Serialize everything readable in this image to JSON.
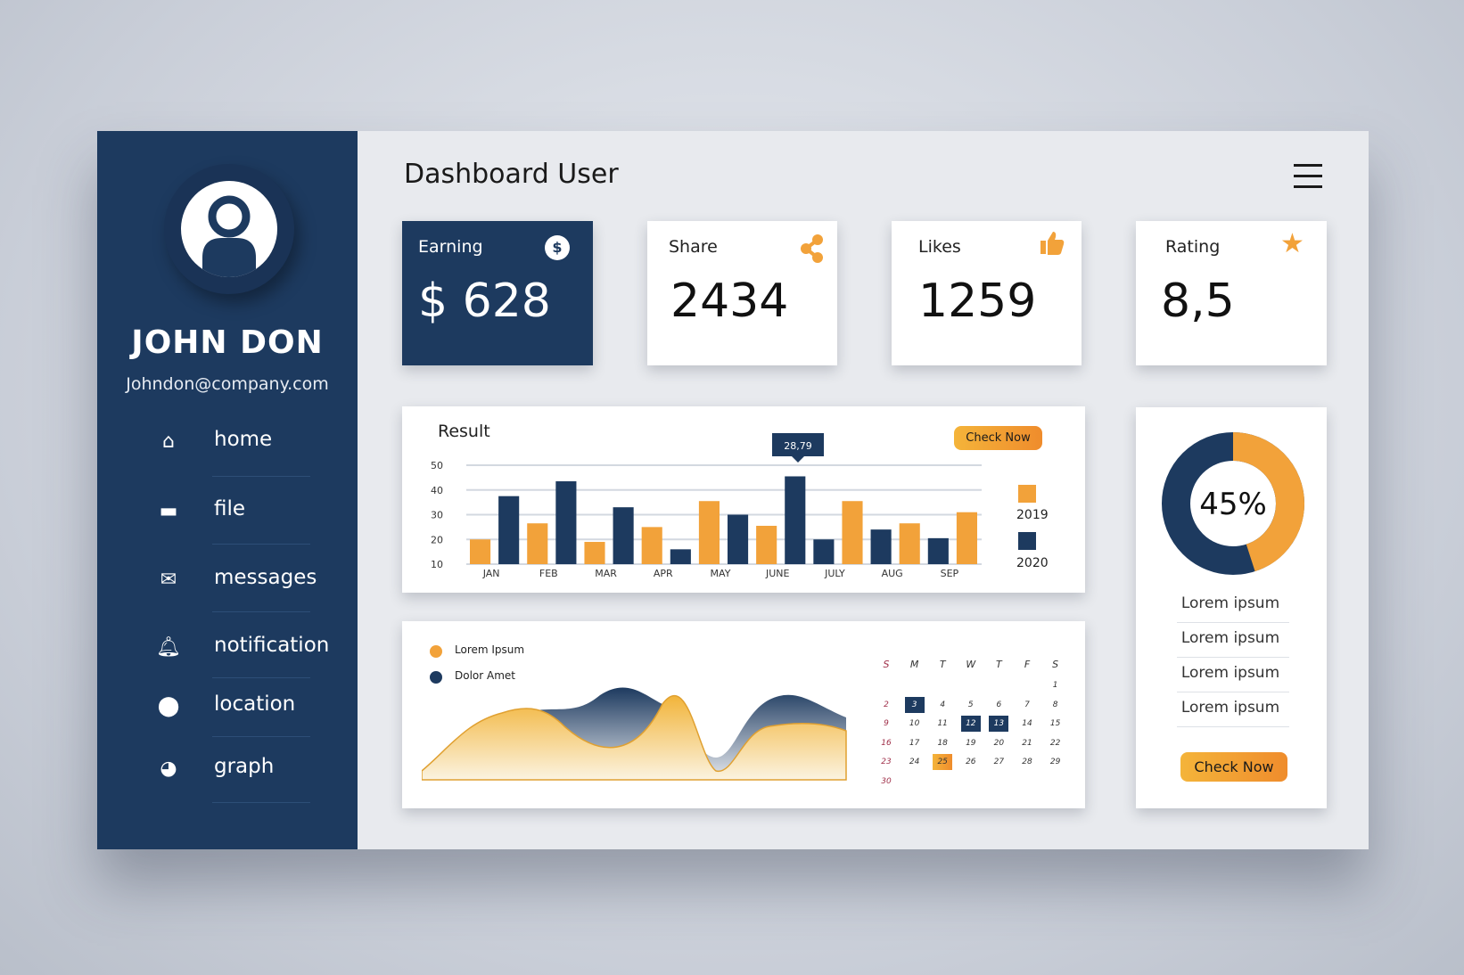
{
  "profile": {
    "name": "JOHN DON",
    "email": "Johndon@company.com"
  },
  "nav": [
    {
      "label": "home",
      "icon": "home-icon"
    },
    {
      "label": "file",
      "icon": "folder-icon"
    },
    {
      "label": "messages",
      "icon": "envelope-icon"
    },
    {
      "label": "notification",
      "icon": "bell-icon"
    },
    {
      "label": "location",
      "icon": "map-pin-icon"
    },
    {
      "label": "graph",
      "icon": "pie-chart-icon"
    }
  ],
  "header": {
    "title": "Dashboard User"
  },
  "stats": [
    {
      "label": "Earning",
      "value": "$ 628",
      "icon": "dollar-icon"
    },
    {
      "label": "Share",
      "value": "2434",
      "icon": "share-icon"
    },
    {
      "label": "Likes",
      "value": "1259",
      "icon": "thumbs-up-icon"
    },
    {
      "label": "Rating",
      "value": "8,5",
      "icon": "star-icon"
    }
  ],
  "result": {
    "title": "Check Now",
    "heading": "Result",
    "tooltip": "28,79"
  },
  "chart_data": {
    "type": "bar",
    "title": "Result",
    "ylim": [
      10,
      50
    ],
    "yticks": [
      50,
      40,
      30,
      20,
      10
    ],
    "categories": [
      "JAN",
      "FEB",
      "MAR",
      "APR",
      "MAY",
      "JUNE",
      "JULY",
      "AUG",
      "SEP"
    ],
    "series": [
      {
        "name": "2019",
        "color": "#f2a23a",
        "values": [
          20,
          26.5,
          19,
          25,
          35.5,
          25.5,
          35.5,
          26.5,
          31
        ]
      },
      {
        "name": "2020",
        "color": "#1d3a5f",
        "values": [
          37.5,
          43.5,
          33,
          16,
          30,
          45.5,
          20,
          24,
          20.5
        ]
      }
    ],
    "legend": "right",
    "grid": true
  },
  "area": {
    "legend": [
      {
        "label": "Lorem Ipsum",
        "color": "#f2a23a"
      },
      {
        "label": "Dolor Amet",
        "color": "#1d3a5f"
      }
    ]
  },
  "calendar": {
    "weekdays": [
      "S",
      "M",
      "T",
      "W",
      "T",
      "F",
      "S"
    ],
    "start_offset": 6,
    "days": 30,
    "highlight_dark": [
      3,
      12,
      13
    ],
    "highlight_orange": [
      25
    ]
  },
  "donut": {
    "percent": 45,
    "label": "45%",
    "colors": {
      "filled": "#f2a23a",
      "rest": "#1d3a5f"
    }
  },
  "side_list": [
    "Lorem ipsum",
    "Lorem ipsum",
    "Lorem ipsum",
    "Lorem ipsum"
  ],
  "side_button": "Check Now"
}
